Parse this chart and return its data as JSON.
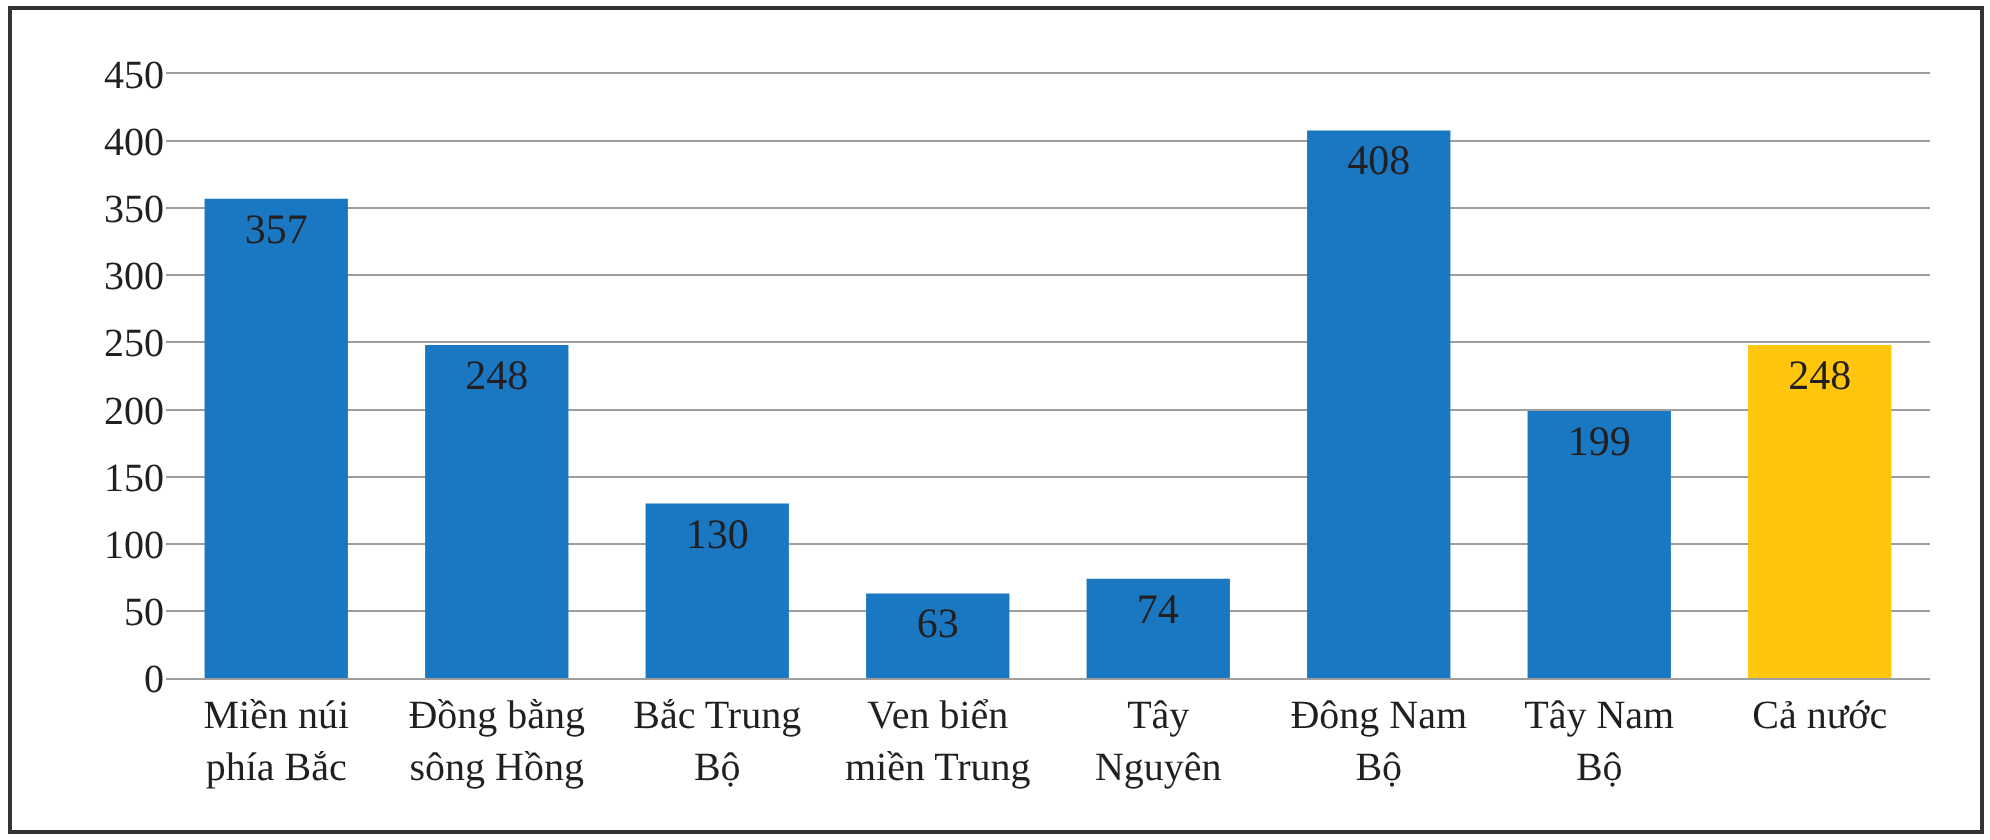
{
  "chart_data": {
    "type": "bar",
    "categories": [
      "Miền núi\nphía Bắc",
      "Đồng bằng\nsông Hồng",
      "Bắc Trung\nBộ",
      "Ven biển\nmiền Trung",
      "Tây\nNguyên",
      "Đông Nam\nBộ",
      "Tây Nam\nBộ",
      "Cả nước"
    ],
    "values": [
      357,
      248,
      130,
      63,
      74,
      408,
      199,
      248
    ],
    "colors": [
      "#1a78c2",
      "#1a78c2",
      "#1a78c2",
      "#1a78c2",
      "#1a78c2",
      "#1a78c2",
      "#1a78c2",
      "#ffc60b"
    ],
    "ylim": [
      0,
      450
    ],
    "yticks": [
      0,
      50,
      100,
      150,
      200,
      250,
      300,
      350,
      400,
      450
    ],
    "grid": "y",
    "data_labels": true
  }
}
